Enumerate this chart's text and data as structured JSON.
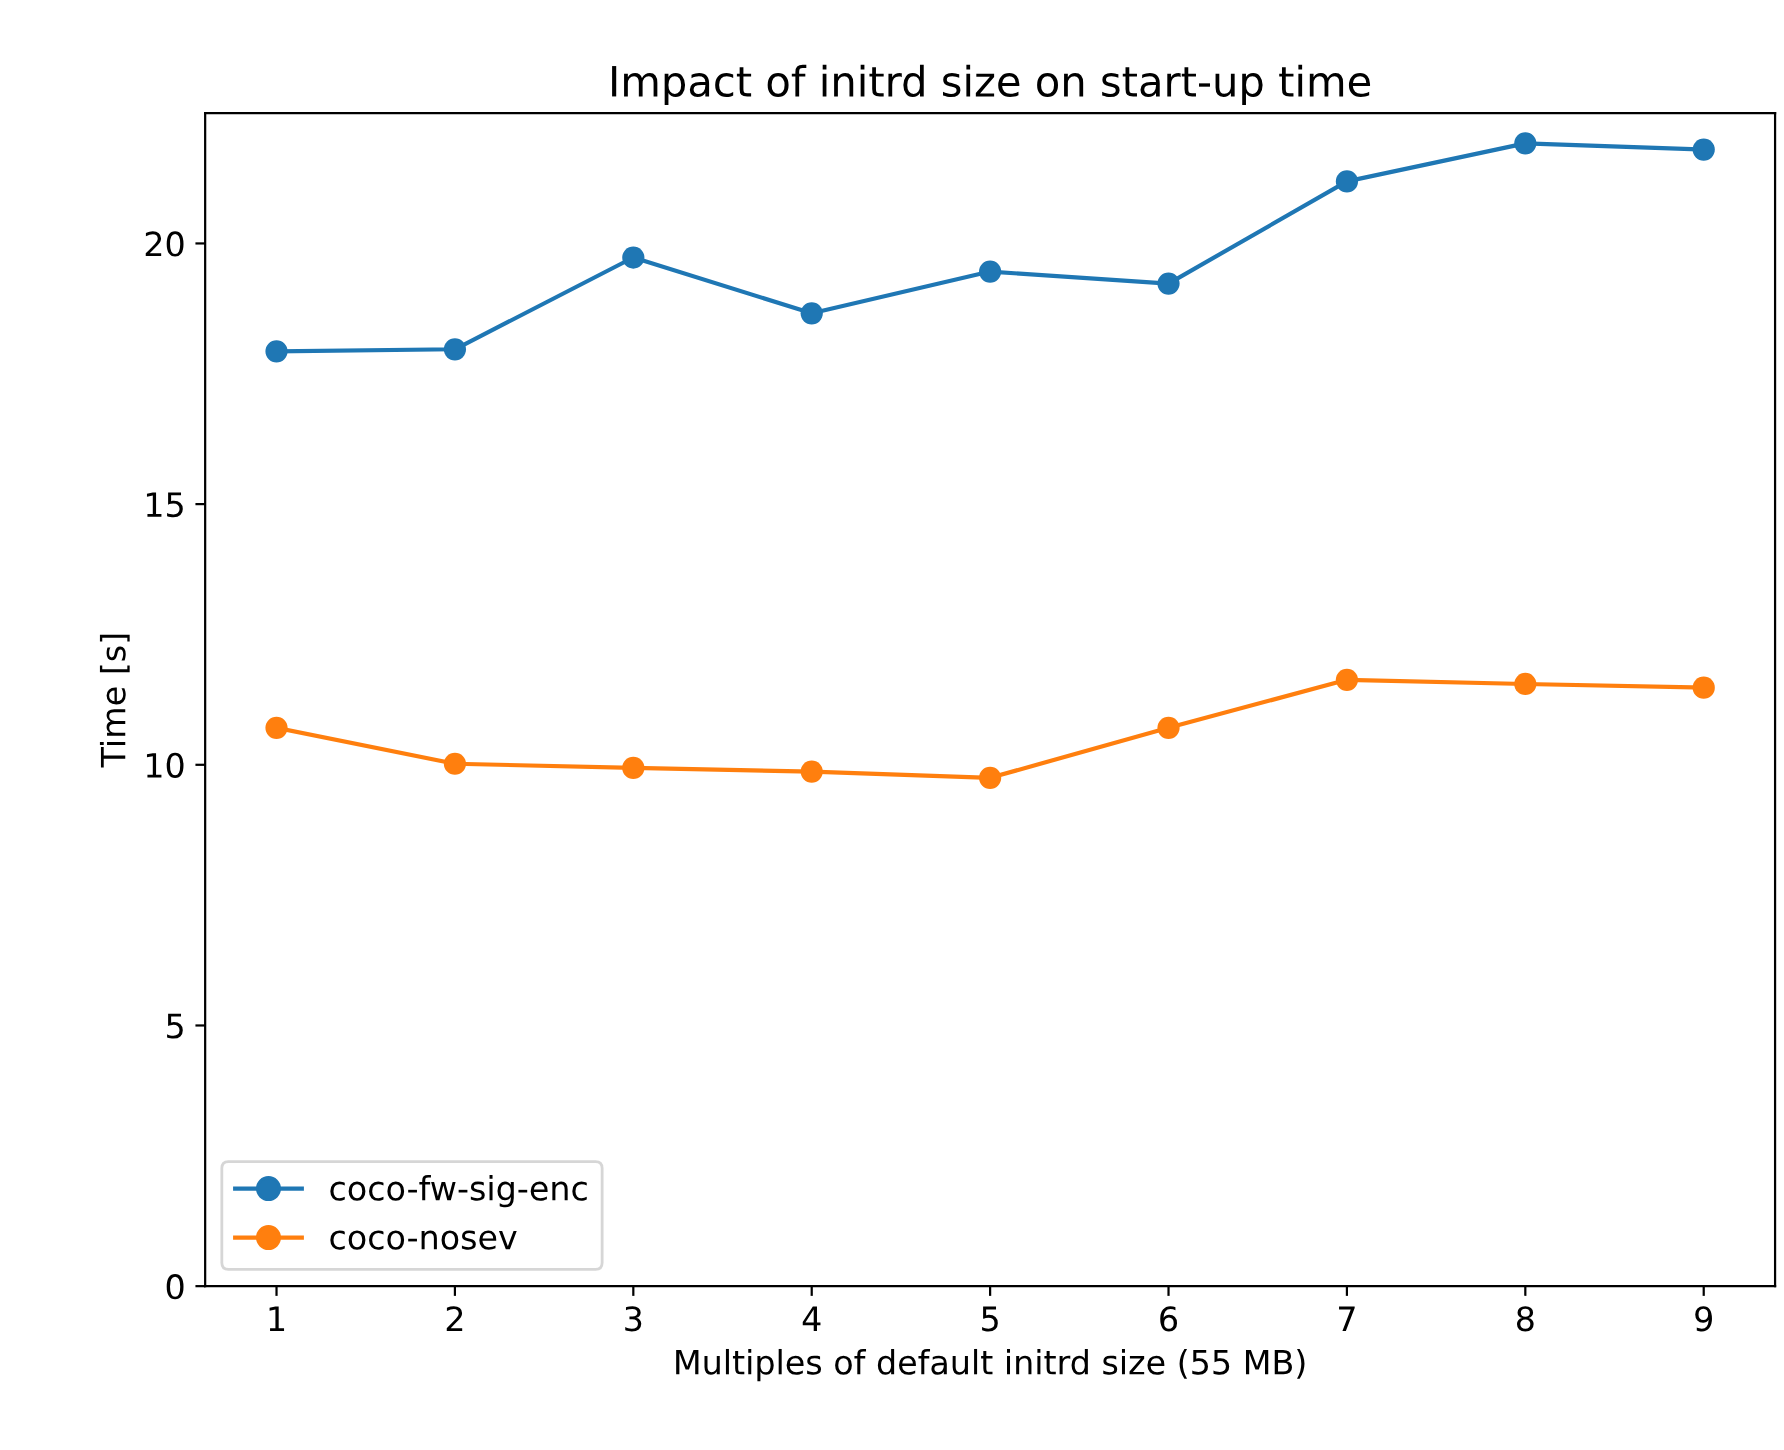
{
  "chart_data": {
    "type": "line",
    "title": "Impact of initrd size on start-up time",
    "xlabel": "Multiples of default initrd size (55 MB)",
    "ylabel": "Time [s]",
    "x": [
      1,
      2,
      3,
      4,
      5,
      6,
      7,
      8,
      9
    ],
    "series": [
      {
        "name": "coco-fw-sig-enc",
        "color": "#1f77b4",
        "values": [
          17.93,
          17.97,
          19.73,
          18.66,
          19.46,
          19.23,
          21.19,
          21.92,
          21.8
        ]
      },
      {
        "name": "coco-nosev",
        "color": "#ff7f0e",
        "values": [
          10.71,
          10.02,
          9.94,
          9.87,
          9.75,
          10.71,
          11.63,
          11.55,
          11.48
        ]
      }
    ],
    "xlim": [
      0.6,
      9.4
    ],
    "ylim": [
      0,
      22.5
    ],
    "xticks": [
      1,
      2,
      3,
      4,
      5,
      6,
      7,
      8,
      9
    ],
    "yticks": [
      0,
      5,
      10,
      15,
      20
    ],
    "marker": "circle",
    "line_style": "solid",
    "grid": false,
    "legend": "bottom left"
  }
}
